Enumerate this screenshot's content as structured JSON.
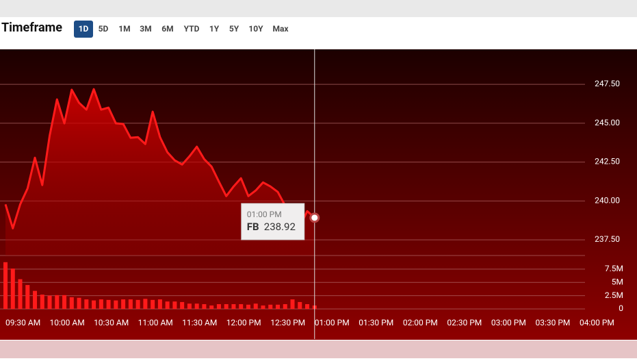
{
  "header": {
    "title": "Timeframe",
    "buttons": [
      "1D",
      "5D",
      "1M",
      "3M",
      "6M",
      "YTD",
      "1Y",
      "5Y",
      "10Y",
      "Max"
    ],
    "active": "1D"
  },
  "chart_data": {
    "type": "line",
    "x": [
      "09:30 AM",
      "09:35 AM",
      "09:40 AM",
      "09:45 AM",
      "09:50 AM",
      "09:55 AM",
      "10:00 AM",
      "10:05 AM",
      "10:10 AM",
      "10:15 AM",
      "10:20 AM",
      "10:25 AM",
      "10:30 AM",
      "10:35 AM",
      "10:40 AM",
      "10:45 AM",
      "10:50 AM",
      "10:55 AM",
      "11:00 AM",
      "11:05 AM",
      "11:10 AM",
      "11:15 AM",
      "11:20 AM",
      "11:25 AM",
      "11:30 AM",
      "11:35 AM",
      "11:40 AM",
      "11:45 AM",
      "11:50 AM",
      "11:55 AM",
      "12:00 PM",
      "12:05 PM",
      "12:10 PM",
      "12:15 PM",
      "12:20 PM",
      "12:25 PM",
      "12:30 PM",
      "12:35 PM",
      "12:40 PM",
      "12:45 PM",
      "12:50 PM",
      "12:55 PM",
      "01:00 PM"
    ],
    "series": [
      {
        "name": "FB",
        "color": "#ff1a1a",
        "values": [
          239.78,
          238.24,
          239.78,
          240.8,
          242.78,
          241.02,
          244.19,
          246.53,
          244.99,
          247.15,
          246.31,
          245.87,
          247.19,
          245.87,
          246.0,
          244.99,
          244.95,
          244.06,
          244.1,
          243.66,
          245.74,
          244.1,
          243.13,
          242.61,
          242.34,
          242.87,
          243.49,
          242.69,
          242.21,
          241.24,
          240.31,
          240.93,
          241.46,
          240.31,
          240.67,
          241.19,
          240.93,
          240.58,
          239.7,
          238.81,
          238.37,
          239.34,
          238.92
        ]
      }
    ],
    "xlim": [
      "09:30 AM",
      "04:00 PM"
    ],
    "xticks": [
      "09:30 AM",
      "10:00 AM",
      "10:30 AM",
      "11:00 AM",
      "11:30 AM",
      "12:00 PM",
      "12:30 PM",
      "01:00 PM",
      "01:30 PM",
      "02:00 PM",
      "02:30 PM",
      "03:00 PM",
      "03:30 PM",
      "04:00 PM"
    ],
    "ylim": [
      236.49,
      249.75
    ],
    "yticks": [
      {
        "value": 237.5,
        "label": "237.50"
      },
      {
        "value": 240,
        "label": "240.00"
      },
      {
        "value": 242.5,
        "label": "242.50"
      },
      {
        "value": 245,
        "label": "245.00"
      },
      {
        "value": 247.5,
        "label": "247.50"
      }
    ],
    "grid": true,
    "volume": {
      "color": "#ff1a1a",
      "ylim": [
        0,
        9800000
      ],
      "yticks": [
        0,
        {
          "value": 2500000,
          "label": "2.5M"
        },
        {
          "value": 5000000,
          "label": "5M"
        },
        {
          "value": 7500000,
          "label": "7.5M"
        }
      ],
      "values": [
        8800000,
        7600000,
        5600000,
        4500000,
        3400000,
        2700000,
        2500000,
        2600000,
        2600000,
        2200000,
        2100000,
        1800000,
        1600000,
        1800000,
        1700000,
        1600000,
        1800000,
        1800000,
        1700000,
        1900000,
        1700000,
        1800000,
        1400000,
        1400000,
        1300000,
        1000000,
        1000000,
        900000,
        650000,
        900000,
        900000,
        900000,
        900000,
        800000,
        1000000,
        650000,
        800000,
        800000,
        900000,
        1800000,
        1300000,
        900000,
        650000
      ]
    },
    "tooltip_index": 42
  }
}
